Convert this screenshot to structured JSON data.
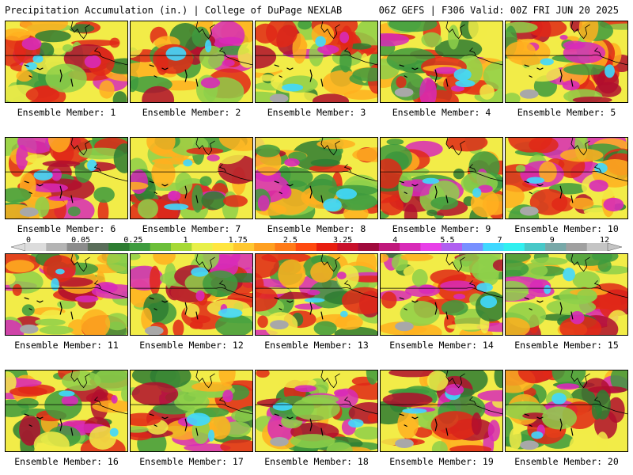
{
  "header": {
    "title_left": "Precipitation Accumulation (in.) | College of DuPage NEXLAB",
    "title_right": "06Z GEFS | F306 Valid: 00Z FRI JUN 20 2025"
  },
  "colorbar": {
    "tick_labels": [
      "0",
      "0.05",
      "0.25",
      "1",
      "1.75",
      "2.5",
      "3.25",
      "4",
      "5.5",
      "7",
      "9",
      "12"
    ],
    "colors": [
      "#dcdcdc",
      "#b4b4b4",
      "#8c8c8c",
      "#5a6e5a",
      "#2e7d32",
      "#3e9b3e",
      "#6cbf3a",
      "#a6d936",
      "#e8f04a",
      "#ffe640",
      "#ffc830",
      "#ffa020",
      "#ff7a18",
      "#ff4a10",
      "#e81e10",
      "#c8102a",
      "#a00a3c",
      "#c0187c",
      "#d82ab8",
      "#e840e8",
      "#b060f0",
      "#7890ff",
      "#40d8ff",
      "#30f0f0",
      "#48c8c8",
      "#78a8a8",
      "#a0a0a0",
      "#c4c4c4"
    ]
  },
  "map": {
    "palette": {
      "dark_green": "#2e7d32",
      "green": "#3e9b3e",
      "light_green": "#8ed04a",
      "yellow": "#f2ec48",
      "orange": "#ffb020",
      "red": "#e02818",
      "dark_red": "#b00e2e",
      "magenta": "#d82ab8",
      "cyan": "#40d8ff",
      "gray": "#a8a8a8"
    }
  },
  "members": [
    {
      "label": "Ensemble Member: 1"
    },
    {
      "label": "Ensemble Member: 2"
    },
    {
      "label": "Ensemble Member: 3"
    },
    {
      "label": "Ensemble Member: 4"
    },
    {
      "label": "Ensemble Member: 5"
    },
    {
      "label": "Ensemble Member: 6"
    },
    {
      "label": "Ensemble Member: 7"
    },
    {
      "label": "Ensemble Member: 8"
    },
    {
      "label": "Ensemble Member: 9"
    },
    {
      "label": "Ensemble Member: 10"
    },
    {
      "label": "Ensemble Member: 11"
    },
    {
      "label": "Ensemble Member: 12"
    },
    {
      "label": "Ensemble Member: 13"
    },
    {
      "label": "Ensemble Member: 14"
    },
    {
      "label": "Ensemble Member: 15"
    },
    {
      "label": "Ensemble Member: 16"
    },
    {
      "label": "Ensemble Member: 17"
    },
    {
      "label": "Ensemble Member: 18"
    },
    {
      "label": "Ensemble Member: 19"
    },
    {
      "label": "Ensemble Member: 20"
    }
  ]
}
